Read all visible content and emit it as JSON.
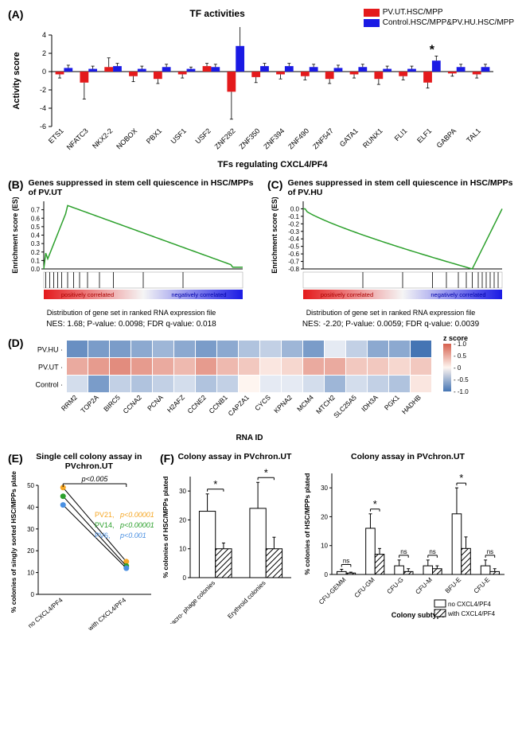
{
  "panelA": {
    "label": "(A)",
    "title": "TF activities",
    "legend": [
      {
        "label": "PV.UT.HSC/MPP",
        "color": "#e41a1c"
      },
      {
        "label": "Control.HSC/MPP&PV.HU.HSC/MPP",
        "color": "#1a1ae4"
      }
    ],
    "ylabel": "Activity score",
    "xlabel": "TFs regulating CXCL4/PF4",
    "ylim": [
      -6,
      4
    ],
    "ytick_step": 2,
    "categories": [
      "ETS1",
      "NFATC3",
      "NKX2-2",
      "NOBOX",
      "PBX1",
      "USF1",
      "USF2",
      "ZNF282",
      "ZNF350",
      "ZNF394",
      "ZNF490",
      "ZNF547",
      "GATA1",
      "RUNX1",
      "FLI1",
      "ELF1",
      "GABPA",
      "TAL1"
    ],
    "red": [
      -0.3,
      -1.2,
      0.5,
      -0.5,
      -0.8,
      -0.3,
      0.6,
      -2.2,
      -0.6,
      -0.3,
      -0.5,
      -0.8,
      -0.3,
      -0.8,
      -0.5,
      -1.2,
      -0.2,
      -0.3
    ],
    "blue": [
      0.4,
      0.3,
      0.6,
      0.3,
      0.5,
      0.3,
      0.5,
      2.8,
      0.6,
      0.6,
      0.5,
      0.4,
      0.5,
      0.3,
      0.3,
      1.2,
      0.5,
      0.5
    ],
    "red_err": [
      0.4,
      1.8,
      1.0,
      0.6,
      0.5,
      0.4,
      0.3,
      3.0,
      0.6,
      0.5,
      0.4,
      0.5,
      0.4,
      0.6,
      0.4,
      0.6,
      0.3,
      0.4
    ],
    "blue_err": [
      0.3,
      0.3,
      0.3,
      0.3,
      0.3,
      0.2,
      0.3,
      2.2,
      0.3,
      0.3,
      0.3,
      0.3,
      0.3,
      0.3,
      0.3,
      0.5,
      0.3,
      0.3
    ],
    "stars": {
      "ZNF282": "*",
      "ELF1": "*"
    },
    "bar_color_red": "#e41a1c",
    "bar_color_blue": "#1a1ae4",
    "background": "#ffffff"
  },
  "panelB": {
    "label": "(B)",
    "title": "Genes suppressed in stem cell quiescence in HSC/MPPs of PV.UT",
    "ylabel": "Enrichment score (ES)",
    "correlated_labels": [
      "positively correlated",
      "negatively correlated"
    ],
    "dist_label": "Distribution of gene set in ranked RNA expression file",
    "stats": "NES: 1.68; P-value: 0.0098; FDR q-value: 0.018",
    "line_color": "#2ca02c",
    "pos_color": "#e41a1c",
    "neg_color": "#1a1ae4",
    "ylim": [
      0,
      0.8
    ],
    "yticks": [
      0.0,
      0.1,
      0.2,
      0.3,
      0.4,
      0.5,
      0.6,
      0.7
    ],
    "curve_peak": 0.75
  },
  "panelC": {
    "label": "(C)",
    "title": "Genes suppressed in stem cell quiescence in HSC/MPPs of PV.HU",
    "ylabel": "Enrichment score (ES)",
    "correlated_labels": [
      "positively correlated",
      "negatively correlated"
    ],
    "dist_label": "Distribution of gene set in ranked RNA expression file",
    "stats": "NES: -2.20; P-value: 0.0059; FDR q-value: 0.0039",
    "line_color": "#2ca02c",
    "pos_color": "#e41a1c",
    "neg_color": "#1a1ae4",
    "ylim": [
      -0.8,
      0.1
    ],
    "yticks": [
      -0.8,
      -0.7,
      -0.6,
      -0.5,
      -0.4,
      -0.3,
      -0.2,
      -0.1,
      0.0
    ],
    "curve_trough": -0.8
  },
  "panelD": {
    "label": "(D)",
    "rows": [
      "PV.HU",
      "PV.UT",
      "Control"
    ],
    "cols": [
      "RRM2",
      "TOP2A",
      "BIRC5",
      "CCNA2",
      "PCNA",
      "H2AFZ",
      "CCNE2",
      "CCNB1",
      "CAPZA1",
      "CYCS",
      "KPNA2",
      "MCM4",
      "MTCH2",
      "SLC25A5",
      "IDH3A",
      "PGK1",
      "HADHB"
    ],
    "xlabel": "RNA ID",
    "zlabel": "z score",
    "zscale_ticks": [
      "1.0",
      "0.5",
      "0",
      "-0.5",
      "-1.0"
    ],
    "colorscale_pos": "#d6604d",
    "colorscale_neg": "#4575b4",
    "colorscale_mid": "#fef5f0",
    "values": [
      [
        -0.8,
        -0.7,
        -0.7,
        -0.6,
        -0.5,
        -0.6,
        -0.7,
        -0.6,
        -0.4,
        -0.3,
        -0.5,
        -0.7,
        -0.1,
        -0.3,
        -0.6,
        -0.6,
        -1.0
      ],
      [
        0.5,
        0.6,
        0.7,
        0.6,
        0.5,
        0.4,
        0.6,
        0.4,
        0.3,
        0.1,
        0.2,
        0.5,
        0.5,
        0.3,
        0.3,
        0.2,
        0.3
      ],
      [
        -0.2,
        -0.7,
        -0.3,
        -0.4,
        -0.3,
        -0.2,
        -0.4,
        -0.3,
        0.0,
        -0.1,
        -0.1,
        -0.2,
        -0.5,
        -0.2,
        -0.3,
        -0.4,
        0.1
      ]
    ]
  },
  "panelE": {
    "label": "(E)",
    "title": "Single cell colony assay in PVchron.UT",
    "ylabel": "% colonies of singly sorted HSC/MPPs plated",
    "xcats": [
      "no CXCL4/PF4",
      "with CXCL4/PF4"
    ],
    "pval_top": "p<0.005",
    "lines": [
      {
        "name": "PV21",
        "p": "p<0.00001",
        "color": "#f5a623",
        "y": [
          49,
          15
        ]
      },
      {
        "name": "PV14",
        "p": "p<0.00001",
        "color": "#2ca02c",
        "y": [
          45,
          13
        ]
      },
      {
        "name": "PV6",
        "p": "p<0.001",
        "color": "#4a90e2",
        "y": [
          41,
          12
        ]
      }
    ],
    "ylim": [
      0,
      50
    ],
    "ytick_step": 10
  },
  "panelF": {
    "label": "(F)",
    "chart1": {
      "title": "Colony assay in PVchron.UT",
      "ylabel": "% colonies of HSC/MPPs plated",
      "cats": [
        "Granulocyte/macro- phage colonies",
        "Erythroid colonies"
      ],
      "noCXCL4": [
        23,
        24
      ],
      "withCXCL4": [
        10,
        10
      ],
      "noErr": [
        6,
        9
      ],
      "withErr": [
        2,
        4
      ],
      "sig": [
        "*",
        "*"
      ],
      "ylim": [
        0,
        35
      ],
      "ytick_step": 10
    },
    "chart2": {
      "title": "Colony assay in PVchron.UT",
      "ylabel": "% colonies of HSC/MPPs plated",
      "xlabel": "Colony subtype",
      "cats": [
        "CFU-GEMM",
        "CFU-GM",
        "CFU-G",
        "CFU-M",
        "BFU-E",
        "CFU-E"
      ],
      "noCXCL4": [
        1,
        16,
        3,
        3,
        21,
        3
      ],
      "withCXCL4": [
        0.5,
        7,
        1,
        2,
        9,
        1
      ],
      "noErr": [
        0.8,
        5,
        2,
        2,
        9,
        2
      ],
      "withErr": [
        0.3,
        2,
        1,
        1,
        4,
        1
      ],
      "sig": [
        "ns",
        "*",
        "ns",
        "ns",
        "*",
        "ns"
      ],
      "ylim": [
        0,
        35
      ],
      "ytick_step": 10
    },
    "legend": [
      {
        "label": "no CXCL4/PF4",
        "fill": "#ffffff",
        "stroke": "#000000",
        "pattern": false
      },
      {
        "label": "with CXCL4/PF4",
        "fill": "#ffffff",
        "stroke": "#000000",
        "pattern": true
      }
    ]
  }
}
